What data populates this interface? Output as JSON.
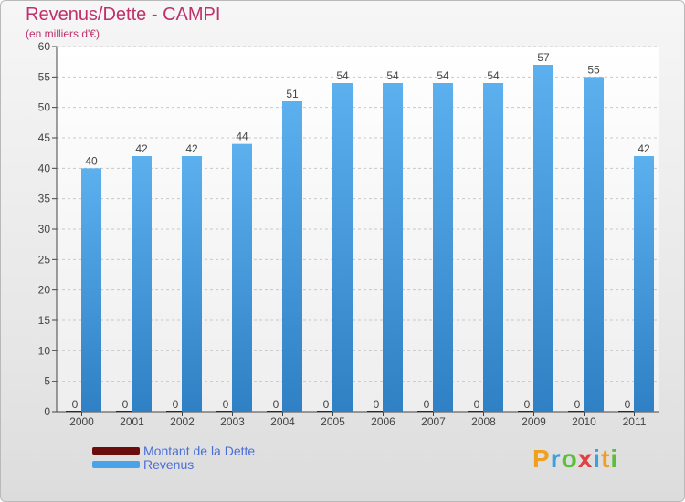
{
  "chart_data": {
    "type": "bar",
    "title": "Revenus/Dette - CAMPI",
    "subtitle": "(en milliers d'€)",
    "categories": [
      "2000",
      "2001",
      "2002",
      "2003",
      "2004",
      "2005",
      "2006",
      "2007",
      "2008",
      "2009",
      "2010",
      "2011"
    ],
    "series": [
      {
        "name": "Montant de la Dette",
        "values": [
          0,
          0,
          0,
          0,
          0,
          0,
          0,
          0,
          0,
          0,
          0,
          0
        ],
        "color": "#6b0d0d"
      },
      {
        "name": "Revenus",
        "values": [
          40,
          42,
          42,
          44,
          51,
          54,
          54,
          54,
          54,
          57,
          55,
          42
        ],
        "color": "#4aa3e8"
      }
    ],
    "ylim": [
      0,
      60
    ],
    "yticks": [
      0,
      5,
      10,
      15,
      20,
      25,
      30,
      35,
      40,
      45,
      50,
      55,
      60
    ],
    "grid": true,
    "legend_position": "bottom-left"
  },
  "logo": {
    "letters": [
      "P",
      "r",
      "o",
      "x",
      "i",
      "t",
      "i"
    ],
    "colors": [
      "#f0a020",
      "#3aa0e0",
      "#5bbf3a",
      "#e04040",
      "#3aa0e0",
      "#f0a020",
      "#5bbf3a"
    ]
  }
}
